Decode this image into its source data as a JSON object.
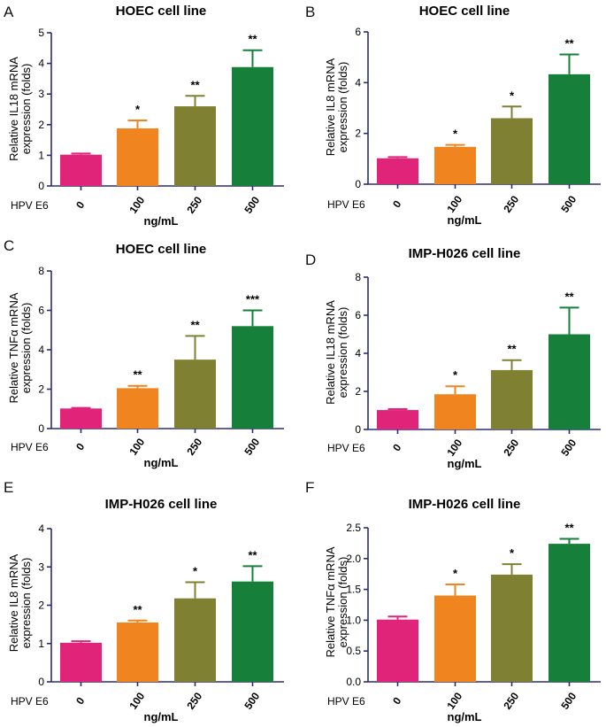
{
  "colors": [
    "#e0247a",
    "#f0851f",
    "#808033",
    "#167f3a"
  ],
  "axis_color": "#2b2b7a",
  "chart_data": [
    {
      "panel": "A",
      "type": "bar",
      "title": "HOEC cell line",
      "ylabel_line1": "Relative IL18 mRNA",
      "ylabel_line2": "expression (folds)",
      "group_label": "HPV E6",
      "xlabel": "ng/mL",
      "categories": [
        "0",
        "100",
        "250",
        "500"
      ],
      "values": [
        1.02,
        1.88,
        2.6,
        3.88
      ],
      "errors": [
        0.04,
        0.26,
        0.34,
        0.55
      ],
      "significance": [
        "",
        "*",
        "**",
        "**"
      ],
      "ylim": [
        0,
        5
      ],
      "yticks": [
        "0",
        "1",
        "2",
        "3",
        "4",
        "5"
      ],
      "ytick_values": [
        0,
        1,
        2,
        3,
        4,
        5
      ]
    },
    {
      "panel": "B",
      "type": "bar",
      "title": "HOEC cell line",
      "ylabel_line1": "Relative IL8 mRNA",
      "ylabel_line2": "expression (folds)",
      "group_label": "HPV E6",
      "xlabel": "ng/mL",
      "categories": [
        "0",
        "100",
        "250",
        "500"
      ],
      "values": [
        1.02,
        1.47,
        2.6,
        4.33
      ],
      "errors": [
        0.05,
        0.08,
        0.46,
        0.78
      ],
      "significance": [
        "",
        "*",
        "*",
        "**"
      ],
      "ylim": [
        0,
        6
      ],
      "yticks": [
        "0",
        "2",
        "4",
        "6"
      ],
      "ytick_values": [
        0,
        2,
        4,
        6
      ]
    },
    {
      "panel": "C",
      "type": "bar",
      "title": "HOEC cell line",
      "ylabel_line1": "Relative TNFα mRNA",
      "ylabel_line2": "expression (folds)",
      "group_label": "HPV E6",
      "xlabel": "ng/mL",
      "categories": [
        "0",
        "100",
        "250",
        "500"
      ],
      "values": [
        1.02,
        2.05,
        3.5,
        5.2
      ],
      "errors": [
        0.03,
        0.12,
        1.2,
        0.8
      ],
      "significance": [
        "",
        "**",
        "**",
        "***"
      ],
      "ylim": [
        0,
        8
      ],
      "yticks": [
        "0",
        "2",
        "4",
        "6",
        "8"
      ],
      "ytick_values": [
        0,
        2,
        4,
        6,
        8
      ]
    },
    {
      "panel": "D",
      "type": "bar",
      "title": "IMP-H026 cell line",
      "ylabel_line1": "Relative IL18 mRNA",
      "ylabel_line2": "expression (folds)",
      "group_label": "HPV E6",
      "xlabel": "ng/mL",
      "categories": [
        "0",
        "100",
        "250",
        "500"
      ],
      "values": [
        1.02,
        1.85,
        3.12,
        5.0
      ],
      "errors": [
        0.05,
        0.42,
        0.52,
        1.4
      ],
      "significance": [
        "",
        "*",
        "**",
        "**"
      ],
      "ylim": [
        0,
        8
      ],
      "yticks": [
        "0",
        "2",
        "4",
        "6",
        "8"
      ],
      "ytick_values": [
        0,
        2,
        4,
        6,
        8
      ]
    },
    {
      "panel": "E",
      "type": "bar",
      "title": "IMP-H026 cell line",
      "ylabel_line1": "Relative IL8 mRNA",
      "ylabel_line2": "expression (folds)",
      "group_label": "HPV E6",
      "xlabel": "ng/mL",
      "categories": [
        "0",
        "100",
        "250",
        "500"
      ],
      "values": [
        1.02,
        1.55,
        2.18,
        2.62
      ],
      "errors": [
        0.04,
        0.05,
        0.42,
        0.4
      ],
      "significance": [
        "",
        "**",
        "*",
        "**"
      ],
      "ylim": [
        0,
        4
      ],
      "yticks": [
        "0",
        "1",
        "2",
        "3",
        "4"
      ],
      "ytick_values": [
        0,
        1,
        2,
        3,
        4
      ]
    },
    {
      "panel": "F",
      "type": "bar",
      "title": "IMP-H026 cell line",
      "ylabel_line1": "Relative TNFα mRNA",
      "ylabel_line2": "expression (folds)",
      "group_label": "HPV E6",
      "xlabel": "ng/mL",
      "categories": [
        "0",
        "100",
        "250",
        "500"
      ],
      "values": [
        1.01,
        1.4,
        1.74,
        2.24
      ],
      "errors": [
        0.05,
        0.18,
        0.17,
        0.08
      ],
      "significance": [
        "",
        "*",
        "*",
        "**"
      ],
      "ylim": [
        0,
        2.5
      ],
      "yticks": [
        "0.0",
        "0.5",
        "1.0",
        "1.5",
        "2.0",
        "2.5"
      ],
      "ytick_values": [
        0,
        0.5,
        1.0,
        1.5,
        2.0,
        2.5
      ]
    }
  ]
}
